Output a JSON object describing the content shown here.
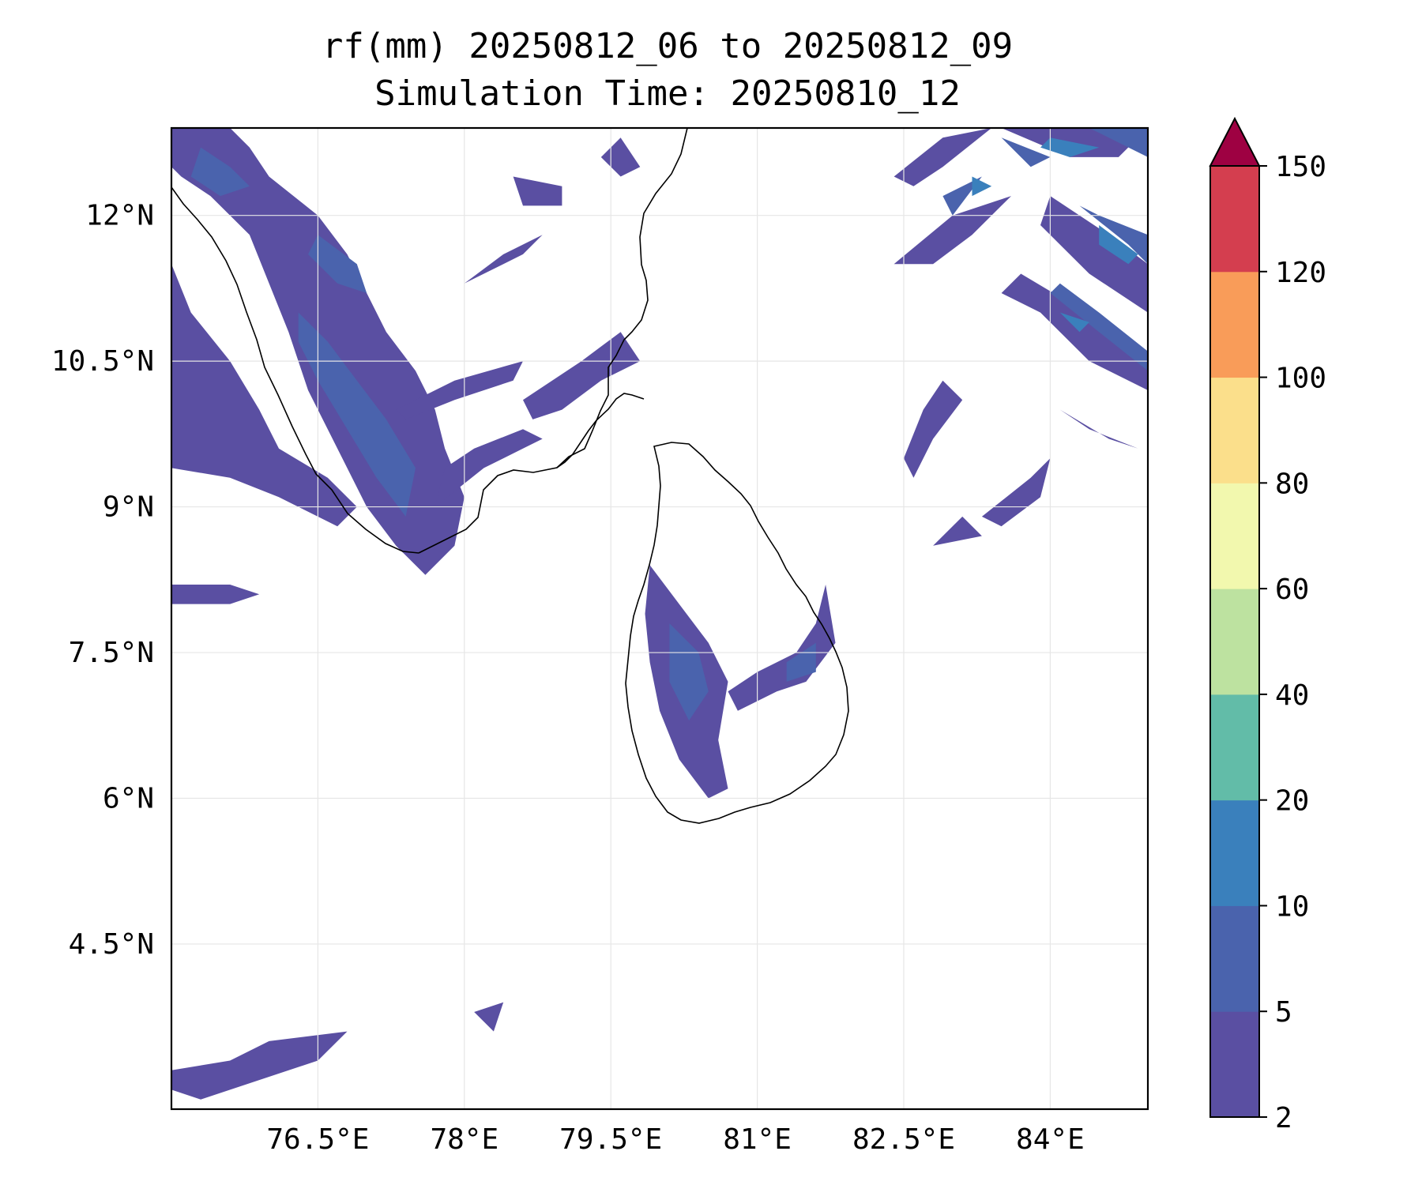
{
  "title": {
    "line1": "rf(mm) 20250812_06 to 20250812_09",
    "line2": "Simulation Time: 20250810_12"
  },
  "map": {
    "lon_range": [
      75.0,
      85.0
    ],
    "lat_range": [
      2.8,
      12.9
    ],
    "gridlines": true,
    "coastline_color": "#000000"
  },
  "axes": {
    "x_ticks": [
      {
        "value": 76.5,
        "label": "76.5°E"
      },
      {
        "value": 78.0,
        "label": "78°E"
      },
      {
        "value": 79.5,
        "label": "79.5°E"
      },
      {
        "value": 81.0,
        "label": "81°E"
      },
      {
        "value": 82.5,
        "label": "82.5°E"
      },
      {
        "value": 84.0,
        "label": "84°E"
      }
    ],
    "y_ticks": [
      {
        "value": 12.0,
        "label": "12°N"
      },
      {
        "value": 10.5,
        "label": "10.5°N"
      },
      {
        "value": 9.0,
        "label": "9°N"
      },
      {
        "value": 7.5,
        "label": "7.5°N"
      },
      {
        "value": 6.0,
        "label": "6°N"
      },
      {
        "value": 4.5,
        "label": "4.5°N"
      }
    ]
  },
  "colorbar": {
    "levels": [
      "2",
      "5",
      "10",
      "20",
      "40",
      "60",
      "80",
      "100",
      "120",
      "150"
    ],
    "colors": [
      "#5a4fa2",
      "#4a63ad",
      "#3a80bc",
      "#62bca8",
      "#bde2a0",
      "#f2f8ae",
      "#fbdf8b",
      "#f99c59",
      "#d43e4f"
    ],
    "extend_color": "#9e0142"
  },
  "rain_areas": [
    {
      "level": 0,
      "pts": [
        [
          75.0,
          12.9
        ],
        [
          75.6,
          12.9
        ],
        [
          75.8,
          12.7
        ],
        [
          76.0,
          12.4
        ],
        [
          76.5,
          12.0
        ],
        [
          76.8,
          11.6
        ],
        [
          77.0,
          11.2
        ],
        [
          77.2,
          10.8
        ],
        [
          77.5,
          10.4
        ],
        [
          77.7,
          10.0
        ],
        [
          77.8,
          9.6
        ],
        [
          78.0,
          9.1
        ],
        [
          77.9,
          8.6
        ],
        [
          77.6,
          8.3
        ],
        [
          77.3,
          8.6
        ],
        [
          77.0,
          9.0
        ],
        [
          76.7,
          9.6
        ],
        [
          76.4,
          10.2
        ],
        [
          76.2,
          10.8
        ],
        [
          76.0,
          11.3
        ],
        [
          75.8,
          11.8
        ],
        [
          75.4,
          12.2
        ],
        [
          75.1,
          12.4
        ],
        [
          75.0,
          12.5
        ]
      ]
    },
    {
      "level": 0,
      "pts": [
        [
          75.0,
          11.5
        ],
        [
          75.2,
          11.0
        ],
        [
          75.6,
          10.5
        ],
        [
          75.9,
          10.0
        ],
        [
          76.1,
          9.6
        ],
        [
          76.6,
          9.3
        ],
        [
          76.9,
          9.0
        ],
        [
          76.7,
          8.8
        ],
        [
          76.1,
          9.1
        ],
        [
          75.6,
          9.3
        ],
        [
          75.0,
          9.4
        ]
      ]
    },
    {
      "level": 0,
      "pts": [
        [
          75.0,
          8.2
        ],
        [
          75.6,
          8.2
        ],
        [
          75.9,
          8.1
        ],
        [
          75.6,
          8.0
        ],
        [
          75.0,
          8.0
        ]
      ]
    },
    {
      "level": 0,
      "pts": [
        [
          77.7,
          9.0
        ],
        [
          78.2,
          9.4
        ],
        [
          78.6,
          9.6
        ],
        [
          78.8,
          9.7
        ],
        [
          78.6,
          9.8
        ],
        [
          78.1,
          9.6
        ],
        [
          77.8,
          9.4
        ]
      ]
    },
    {
      "level": 0,
      "pts": [
        [
          78.6,
          10.1
        ],
        [
          79.2,
          10.5
        ],
        [
          79.6,
          10.8
        ],
        [
          79.8,
          10.5
        ],
        [
          79.4,
          10.3
        ],
        [
          79.0,
          10.0
        ],
        [
          78.7,
          9.9
        ]
      ]
    },
    {
      "level": 0,
      "pts": [
        [
          77.3,
          10.0
        ],
        [
          77.9,
          10.3
        ],
        [
          78.6,
          10.5
        ],
        [
          78.5,
          10.3
        ],
        [
          77.9,
          10.1
        ],
        [
          77.4,
          9.9
        ]
      ]
    },
    {
      "level": 0,
      "pts": [
        [
          78.5,
          12.4
        ],
        [
          79.0,
          12.3
        ],
        [
          79.0,
          12.1
        ],
        [
          78.6,
          12.1
        ]
      ]
    },
    {
      "level": 0,
      "pts": [
        [
          79.6,
          12.8
        ],
        [
          79.8,
          12.5
        ],
        [
          79.6,
          12.4
        ],
        [
          79.4,
          12.6
        ]
      ]
    },
    {
      "level": 0,
      "pts": [
        [
          78.0,
          11.3
        ],
        [
          78.4,
          11.6
        ],
        [
          78.8,
          11.8
        ],
        [
          78.6,
          11.6
        ],
        [
          78.2,
          11.4
        ]
      ]
    },
    {
      "level": 0,
      "pts": [
        [
          79.9,
          8.4
        ],
        [
          80.2,
          8.0
        ],
        [
          80.5,
          7.6
        ],
        [
          80.7,
          7.2
        ],
        [
          80.6,
          6.6
        ],
        [
          80.7,
          6.1
        ],
        [
          80.5,
          6.0
        ],
        [
          80.2,
          6.4
        ],
        [
          80.0,
          6.9
        ],
        [
          79.9,
          7.4
        ],
        [
          79.85,
          7.9
        ]
      ]
    },
    {
      "level": 0,
      "pts": [
        [
          80.7,
          7.1
        ],
        [
          81.0,
          7.3
        ],
        [
          81.4,
          7.5
        ],
        [
          81.6,
          7.8
        ],
        [
          81.7,
          8.2
        ],
        [
          81.8,
          7.6
        ],
        [
          81.5,
          7.2
        ],
        [
          81.2,
          7.1
        ],
        [
          80.8,
          6.9
        ]
      ]
    },
    {
      "level": 0,
      "pts": [
        [
          75.0,
          3.2
        ],
        [
          75.6,
          3.3
        ],
        [
          76.0,
          3.5
        ],
        [
          76.8,
          3.6
        ],
        [
          76.5,
          3.3
        ],
        [
          75.9,
          3.1
        ],
        [
          75.3,
          2.9
        ],
        [
          75.0,
          3.0
        ]
      ]
    },
    {
      "level": 0,
      "pts": [
        [
          78.1,
          3.8
        ],
        [
          78.4,
          3.9
        ],
        [
          78.3,
          3.6
        ]
      ]
    },
    {
      "level": 0,
      "pts": [
        [
          82.4,
          12.4
        ],
        [
          82.9,
          12.8
        ],
        [
          83.4,
          12.9
        ],
        [
          82.9,
          12.5
        ],
        [
          82.6,
          12.3
        ]
      ]
    },
    {
      "level": 0,
      "pts": [
        [
          83.5,
          12.9
        ],
        [
          84.2,
          12.6
        ],
        [
          84.7,
          12.6
        ],
        [
          85.0,
          12.9
        ]
      ]
    },
    {
      "level": 0,
      "pts": [
        [
          83.7,
          11.4
        ],
        [
          84.2,
          11.1
        ],
        [
          84.6,
          10.8
        ],
        [
          85.0,
          10.5
        ],
        [
          85.0,
          10.2
        ],
        [
          84.4,
          10.5
        ],
        [
          83.9,
          11.0
        ],
        [
          83.5,
          11.2
        ]
      ]
    },
    {
      "level": 0,
      "pts": [
        [
          82.5,
          9.5
        ],
        [
          82.7,
          10.0
        ],
        [
          82.9,
          10.3
        ],
        [
          83.1,
          10.1
        ],
        [
          82.8,
          9.7
        ],
        [
          82.6,
          9.3
        ]
      ]
    },
    {
      "level": 0,
      "pts": [
        [
          82.4,
          11.5
        ],
        [
          83.0,
          12.0
        ],
        [
          83.6,
          12.2
        ],
        [
          83.2,
          11.8
        ],
        [
          82.8,
          11.5
        ]
      ]
    },
    {
      "level": 0,
      "pts": [
        [
          84.0,
          12.2
        ],
        [
          84.6,
          11.8
        ],
        [
          85.0,
          11.5
        ],
        [
          85.0,
          11.0
        ],
        [
          84.4,
          11.4
        ],
        [
          83.9,
          11.9
        ]
      ]
    },
    {
      "level": 0,
      "pts": [
        [
          84.1,
          10.0
        ],
        [
          84.6,
          9.7
        ],
        [
          84.9,
          9.6
        ],
        [
          84.4,
          9.8
        ]
      ]
    },
    {
      "level": 0,
      "pts": [
        [
          83.3,
          8.9
        ],
        [
          83.8,
          9.3
        ],
        [
          84.0,
          9.5
        ],
        [
          83.9,
          9.1
        ],
        [
          83.5,
          8.8
        ]
      ]
    },
    {
      "level": 0,
      "pts": [
        [
          82.8,
          8.6
        ],
        [
          83.3,
          8.7
        ],
        [
          83.1,
          8.9
        ]
      ]
    },
    {
      "level": 1,
      "pts": [
        [
          75.3,
          12.7
        ],
        [
          75.6,
          12.5
        ],
        [
          75.8,
          12.3
        ],
        [
          75.5,
          12.2
        ],
        [
          75.2,
          12.4
        ]
      ]
    },
    {
      "level": 1,
      "pts": [
        [
          76.3,
          11.0
        ],
        [
          76.6,
          10.7
        ],
        [
          76.9,
          10.3
        ],
        [
          77.2,
          9.9
        ],
        [
          77.5,
          9.4
        ],
        [
          77.4,
          8.9
        ],
        [
          77.1,
          9.3
        ],
        [
          76.8,
          9.8
        ],
        [
          76.5,
          10.3
        ],
        [
          76.3,
          10.7
        ]
      ]
    },
    {
      "level": 1,
      "pts": [
        [
          76.5,
          11.8
        ],
        [
          76.9,
          11.5
        ],
        [
          77.0,
          11.2
        ],
        [
          76.7,
          11.3
        ],
        [
          76.4,
          11.6
        ]
      ]
    },
    {
      "level": 1,
      "pts": [
        [
          80.1,
          7.8
        ],
        [
          80.4,
          7.5
        ],
        [
          80.5,
          7.1
        ],
        [
          80.3,
          6.8
        ],
        [
          80.1,
          7.2
        ]
      ]
    },
    {
      "level": 1,
      "pts": [
        [
          81.3,
          7.4
        ],
        [
          81.6,
          7.6
        ],
        [
          81.6,
          7.3
        ],
        [
          81.3,
          7.2
        ]
      ]
    },
    {
      "level": 1,
      "pts": [
        [
          83.5,
          12.8
        ],
        [
          84.0,
          12.6
        ],
        [
          83.8,
          12.5
        ]
      ]
    },
    {
      "level": 1,
      "pts": [
        [
          84.4,
          12.9
        ],
        [
          84.8,
          12.7
        ],
        [
          85.0,
          12.6
        ],
        [
          85.0,
          12.9
        ]
      ]
    },
    {
      "level": 1,
      "pts": [
        [
          84.0,
          11.2
        ],
        [
          84.5,
          10.8
        ],
        [
          85.0,
          10.4
        ],
        [
          85.0,
          10.6
        ],
        [
          84.5,
          11.0
        ],
        [
          84.1,
          11.3
        ]
      ]
    },
    {
      "level": 1,
      "pts": [
        [
          84.3,
          12.1
        ],
        [
          84.8,
          11.7
        ],
        [
          85.0,
          11.5
        ],
        [
          85.0,
          11.8
        ],
        [
          84.5,
          12.0
        ]
      ]
    },
    {
      "level": 1,
      "pts": [
        [
          82.9,
          12.2
        ],
        [
          83.3,
          12.4
        ],
        [
          83.0,
          12.0
        ]
      ]
    },
    {
      "level": 2,
      "pts": [
        [
          84.0,
          12.8
        ],
        [
          84.5,
          12.7
        ],
        [
          84.2,
          12.6
        ],
        [
          83.9,
          12.7
        ]
      ]
    },
    {
      "level": 2,
      "pts": [
        [
          84.5,
          11.9
        ],
        [
          84.9,
          11.6
        ],
        [
          84.8,
          11.5
        ],
        [
          84.5,
          11.7
        ]
      ]
    },
    {
      "level": 2,
      "pts": [
        [
          84.1,
          11.0
        ],
        [
          84.4,
          10.9
        ],
        [
          84.3,
          10.8
        ]
      ]
    },
    {
      "level": 2,
      "pts": [
        [
          83.2,
          12.4
        ],
        [
          83.4,
          12.3
        ],
        [
          83.2,
          12.2
        ]
      ]
    }
  ]
}
